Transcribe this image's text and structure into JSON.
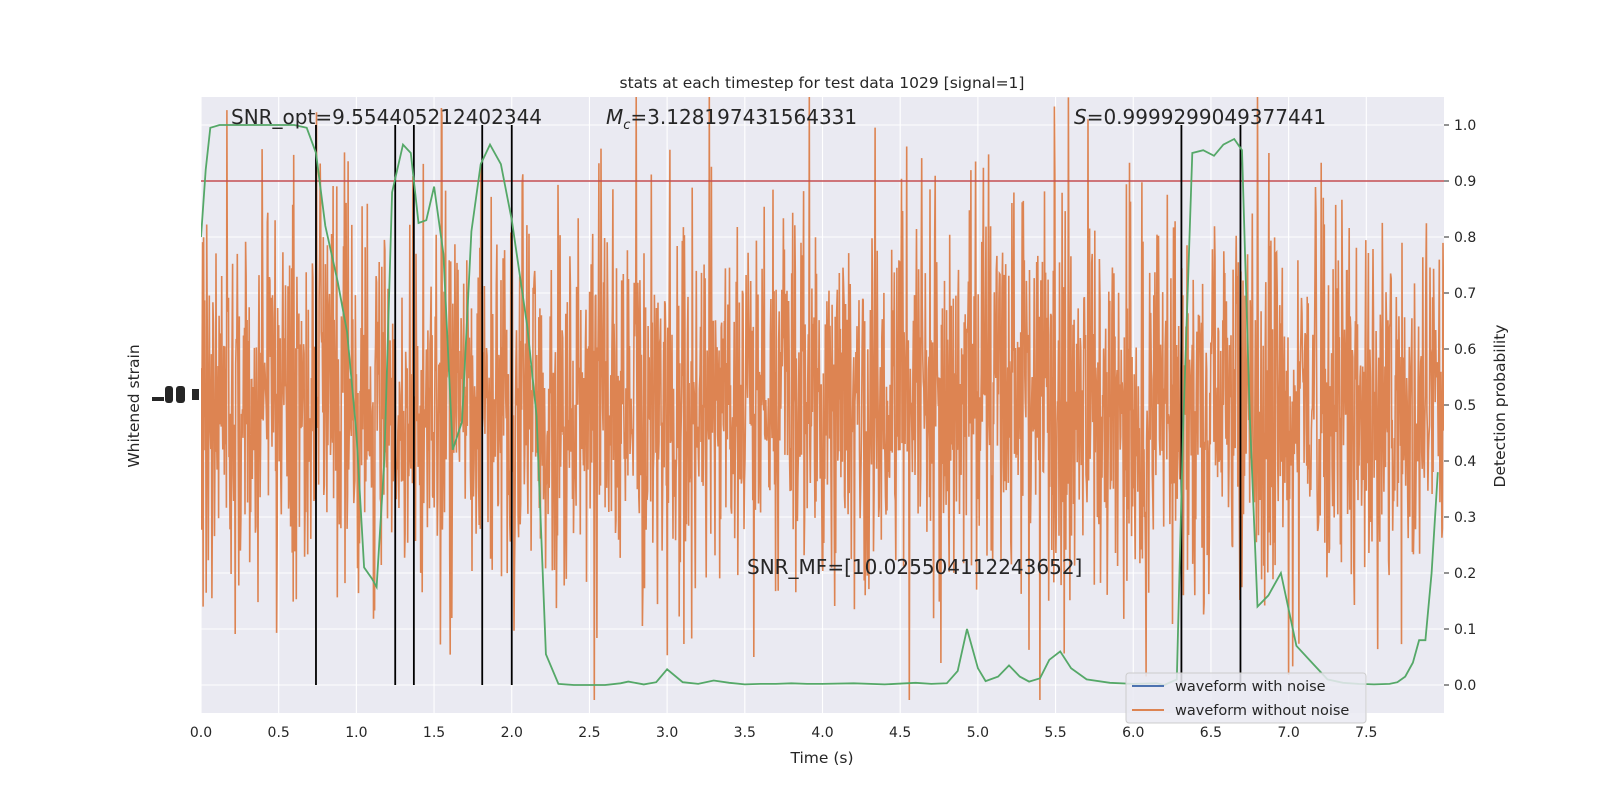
{
  "chart_data": {
    "type": "line",
    "title": "stats at each timestep for test data 1029 [signal=1]",
    "xlabel": "Time (s)",
    "ylabel_left": "Whitened strain",
    "ylabel_right": "Detection probability",
    "xlim": [
      0.0,
      8.0
    ],
    "ylim_right": [
      -0.05,
      1.05
    ],
    "x_ticks": [
      "0.0",
      "0.5",
      "1.0",
      "1.5",
      "2.0",
      "2.5",
      "3.0",
      "3.5",
      "4.0",
      "4.5",
      "5.0",
      "5.5",
      "6.0",
      "6.5",
      "7.0",
      "7.5"
    ],
    "y_ticks_right": [
      "0.0",
      "0.1",
      "0.2",
      "0.3",
      "0.4",
      "0.5",
      "0.6",
      "0.7",
      "0.8",
      "0.9",
      "1.0"
    ],
    "annotations": {
      "snr_opt": "SNR_opt=9.554405212402344",
      "mc_symbol": "M",
      "mc_sub": "c",
      "mc_value": "=3.128197431564331",
      "s_symbol": "S",
      "s_value": "=0.9999299049377441",
      "snr_mf": "SNR_MF=[10.025504112243652]"
    },
    "threshold": 0.9,
    "trigger_times": [
      0.74,
      1.25,
      1.37,
      1.81,
      2.0,
      6.31,
      6.69
    ],
    "detection_probability": {
      "t": [
        0.0,
        0.03,
        0.06,
        0.12,
        0.2,
        0.3,
        0.4,
        0.5,
        0.6,
        0.68,
        0.74,
        0.8,
        0.88,
        0.94,
        1.0,
        1.05,
        1.1,
        1.13,
        1.18,
        1.23,
        1.3,
        1.35,
        1.4,
        1.45,
        1.5,
        1.56,
        1.62,
        1.68,
        1.74,
        1.8,
        1.86,
        1.93,
        2.0,
        2.1,
        2.16,
        2.22,
        2.3,
        2.4,
        2.5,
        2.6,
        2.7,
        2.75,
        2.85,
        2.93,
        3.0,
        3.1,
        3.2,
        3.3,
        3.4,
        3.5,
        3.6,
        3.7,
        3.8,
        3.9,
        4.0,
        4.2,
        4.4,
        4.6,
        4.7,
        4.8,
        4.87,
        4.93,
        5.0,
        5.05,
        5.13,
        5.2,
        5.27,
        5.33,
        5.4,
        5.46,
        5.53,
        5.6,
        5.7,
        5.85,
        6.0,
        6.15,
        6.2,
        6.28,
        6.32,
        6.38,
        6.45,
        6.52,
        6.58,
        6.65,
        6.7,
        6.75,
        6.8,
        6.87,
        6.95,
        7.05,
        7.15,
        7.25,
        7.35,
        7.45,
        7.55,
        7.65,
        7.7,
        7.75,
        7.8,
        7.84,
        7.88,
        7.92,
        7.96
      ],
      "p": [
        0.8,
        0.92,
        0.995,
        1.0,
        1.0,
        1.0,
        1.0,
        1.0,
        1.0,
        0.995,
        0.95,
        0.82,
        0.72,
        0.63,
        0.45,
        0.21,
        0.19,
        0.175,
        0.4,
        0.88,
        0.965,
        0.95,
        0.825,
        0.83,
        0.89,
        0.77,
        0.42,
        0.47,
        0.81,
        0.93,
        0.965,
        0.93,
        0.83,
        0.64,
        0.48,
        0.055,
        0.002,
        0.0,
        0.0,
        0.0,
        0.003,
        0.006,
        0.001,
        0.005,
        0.028,
        0.005,
        0.002,
        0.008,
        0.004,
        0.001,
        0.002,
        0.002,
        0.003,
        0.002,
        0.002,
        0.003,
        0.001,
        0.004,
        0.002,
        0.003,
        0.025,
        0.1,
        0.03,
        0.007,
        0.015,
        0.035,
        0.015,
        0.006,
        0.012,
        0.045,
        0.06,
        0.03,
        0.01,
        0.004,
        0.002,
        0.003,
        0.0,
        0.01,
        0.45,
        0.95,
        0.955,
        0.945,
        0.965,
        0.975,
        0.955,
        0.48,
        0.14,
        0.16,
        0.2,
        0.07,
        0.04,
        0.01,
        0.004,
        0.002,
        0.001,
        0.002,
        0.005,
        0.015,
        0.04,
        0.08,
        0.08,
        0.2,
        0.38
      ]
    },
    "series": [
      {
        "name": "waveform with noise",
        "color": "#4c72b0"
      },
      {
        "name": "waveform without noise",
        "color": "#dd8452"
      }
    ],
    "detection_color": "#55a868",
    "threshold_color": "#c44e52",
    "trigger_color": "#000000",
    "legend_position": "lower right",
    "grid": true,
    "background": "#eaeaf2"
  }
}
